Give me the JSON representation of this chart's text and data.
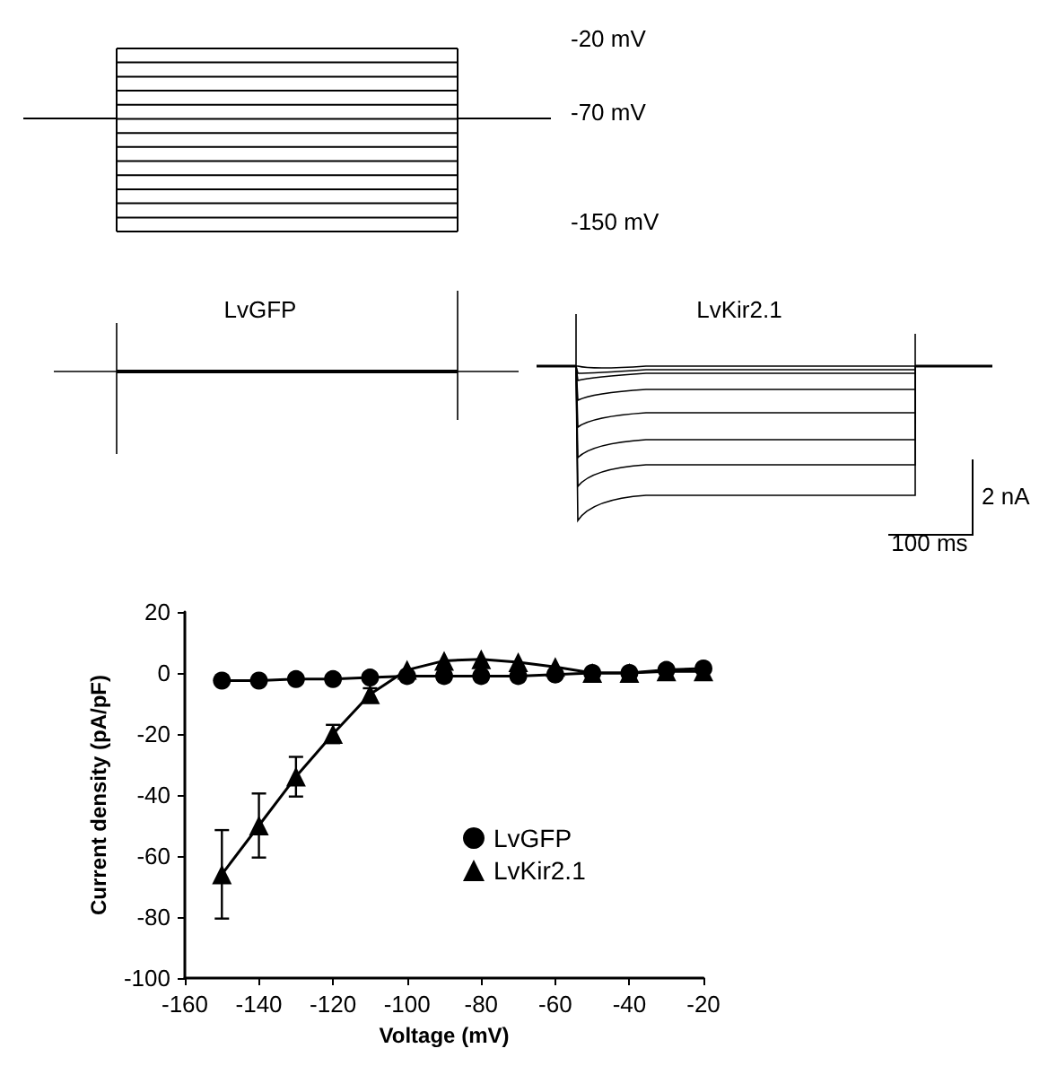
{
  "chart_data": [
    {
      "type": "other",
      "annotations": [
        "-20 mV",
        "-70 mV",
        "-150 mV",
        "LvGFP",
        "LvKir2.1",
        "2 nA",
        "100 ms"
      ]
    },
    {
      "type": "line",
      "xlabel": "Voltage (mV)",
      "ylabel": "Current density (pA/pF)",
      "xlim": [
        -160,
        -20
      ],
      "xticks": [
        -160,
        -140,
        -120,
        -100,
        -80,
        -60,
        -40,
        -20
      ],
      "ylim": [
        -100,
        20
      ],
      "yticks": [
        -100,
        -80,
        -60,
        -40,
        -20,
        0,
        20
      ],
      "grid": false,
      "legend": "right",
      "line_style": "solid",
      "x": [
        -150,
        -140,
        -130,
        -120,
        -110,
        -100,
        -90,
        -80,
        -70,
        -60,
        -50,
        -40,
        -30,
        -20
      ],
      "series": [
        {
          "name": "LvGFP",
          "color": "#000000",
          "marker": "circle",
          "values": [
            -2.5,
            -2.5,
            -2,
            -2,
            -1.5,
            -1,
            -1,
            -1,
            -1,
            -0.5,
            0,
            0,
            1,
            1.5
          ]
        },
        {
          "name": "LvKir2.1",
          "color": "#000000",
          "marker": "triangle",
          "values": [
            -66,
            -50,
            -34,
            -20,
            -7,
            1,
            4,
            4.5,
            3.5,
            2,
            0,
            0,
            0.5,
            0.5
          ],
          "errors": [
            14.5,
            10.5,
            6.5,
            3,
            2,
            null,
            null,
            null,
            null,
            null,
            null,
            null,
            null,
            null
          ]
        }
      ]
    }
  ]
}
